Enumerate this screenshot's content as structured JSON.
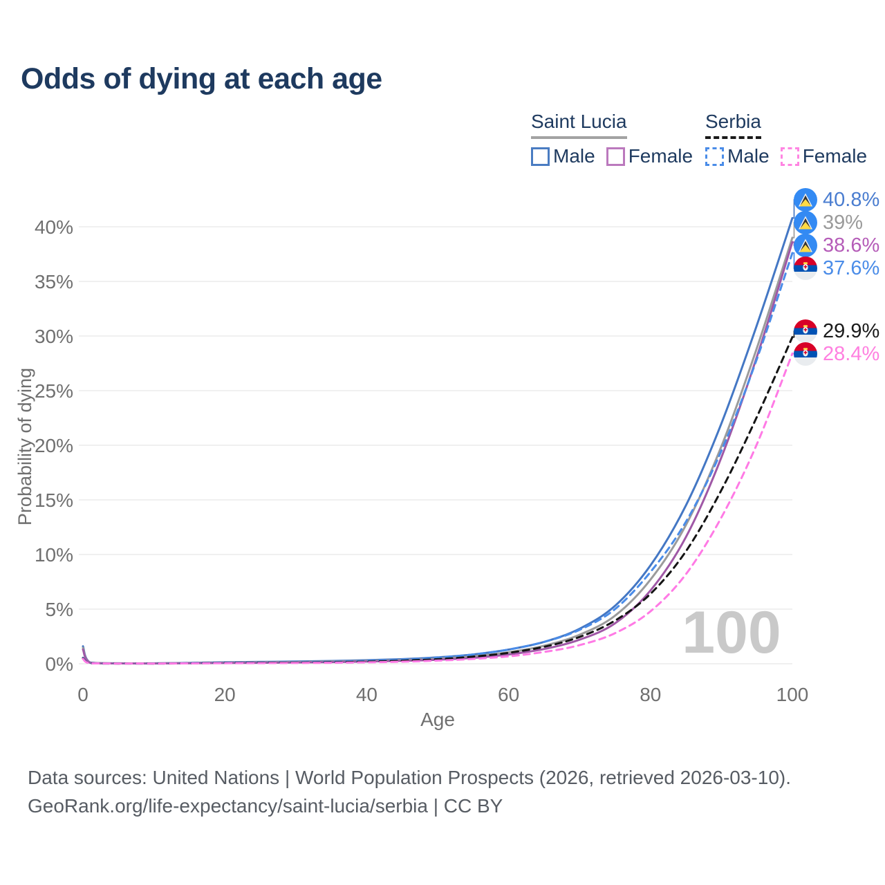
{
  "title": "Odds of dying at each age",
  "legend": {
    "groups": [
      {
        "name": "Saint Lucia",
        "style": "solid",
        "line_color": "#a3a3a3",
        "items": [
          {
            "label": "Male",
            "color": "#4a7cc2",
            "dash": false
          },
          {
            "label": "Female",
            "color": "#bb79bd",
            "dash": false
          }
        ]
      },
      {
        "name": "Serbia",
        "style": "dashed",
        "line_color": "#1a1a1a",
        "items": [
          {
            "label": "Male",
            "color": "#4a8ce8",
            "dash": true
          },
          {
            "label": "Female",
            "color": "#ff85e2",
            "dash": true
          }
        ]
      }
    ]
  },
  "chart_data": {
    "type": "line",
    "title": "Odds of dying at each age",
    "xlabel": "Age",
    "ylabel": "Probability of dying",
    "xlim": [
      0,
      100
    ],
    "ylim": [
      0,
      42
    ],
    "x_ticks": [
      0,
      20,
      40,
      60,
      80,
      100
    ],
    "y_ticks": [
      0,
      5,
      10,
      15,
      20,
      25,
      30,
      35,
      40
    ],
    "y_tick_suffix": "%",
    "grid": true,
    "legend_position": "top-right",
    "watermark": "100",
    "x": [
      0,
      1,
      5,
      10,
      15,
      20,
      25,
      30,
      35,
      40,
      45,
      50,
      55,
      60,
      65,
      70,
      75,
      80,
      85,
      90,
      95,
      100
    ],
    "series": [
      {
        "id": "saint-lucia-male",
        "name": "Saint Lucia Male",
        "country": "Saint Lucia",
        "sex": "Male",
        "color": "#4477c4",
        "label_color": "#4a7dd0",
        "dash": false,
        "flag": "saint-lucia",
        "end_value": 40.8,
        "end_label": "40.8%",
        "values": [
          1.6,
          0.12,
          0.04,
          0.04,
          0.08,
          0.13,
          0.17,
          0.2,
          0.25,
          0.32,
          0.42,
          0.58,
          0.85,
          1.3,
          2.0,
          3.2,
          5.3,
          9.0,
          14.5,
          22.0,
          31.0,
          40.8
        ]
      },
      {
        "id": "saint-lucia-both",
        "name": "Saint Lucia (both sexes)",
        "country": "Saint Lucia",
        "sex": "Both",
        "color": "#9b9b9b",
        "label_color": "#9a9a9a",
        "dash": false,
        "flag": "saint-lucia",
        "end_value": 39,
        "end_label": "39%",
        "values": [
          1.45,
          0.1,
          0.035,
          0.033,
          0.06,
          0.1,
          0.13,
          0.16,
          0.2,
          0.26,
          0.34,
          0.47,
          0.68,
          1.05,
          1.65,
          2.65,
          4.4,
          7.7,
          12.7,
          19.9,
          28.9,
          39.0
        ]
      },
      {
        "id": "saint-lucia-female",
        "name": "Saint Lucia Female",
        "country": "Saint Lucia",
        "sex": "Female",
        "color": "#9f58a6",
        "label_color": "#b55cb8",
        "dash": false,
        "flag": "saint-lucia",
        "end_value": 38.6,
        "end_label": "38.6%",
        "values": [
          1.3,
          0.09,
          0.03,
          0.028,
          0.05,
          0.07,
          0.09,
          0.12,
          0.15,
          0.2,
          0.27,
          0.37,
          0.54,
          0.85,
          1.35,
          2.2,
          3.7,
          6.7,
          11.6,
          18.9,
          28.1,
          38.6
        ]
      },
      {
        "id": "serbia-male",
        "name": "Serbia Male",
        "country": "Serbia",
        "sex": "Male",
        "color": "#4a8ce8",
        "label_color": "#4a8ce8",
        "dash": true,
        "flag": "serbia",
        "end_value": 37.6,
        "end_label": "37.6%",
        "values": [
          0.55,
          0.05,
          0.02,
          0.02,
          0.05,
          0.09,
          0.11,
          0.13,
          0.17,
          0.25,
          0.36,
          0.55,
          0.85,
          1.3,
          2.0,
          3.1,
          5.0,
          8.4,
          13.0,
          19.5,
          27.9,
          37.6
        ]
      },
      {
        "id": "serbia-both",
        "name": "Serbia (both sexes)",
        "country": "Serbia",
        "sex": "Both",
        "color": "#141414",
        "label_color": "#1a1a1a",
        "dash": true,
        "flag": "serbia",
        "end_value": 29.9,
        "end_label": "29.9%",
        "values": [
          0.5,
          0.045,
          0.018,
          0.018,
          0.04,
          0.07,
          0.09,
          0.1,
          0.13,
          0.19,
          0.28,
          0.42,
          0.65,
          1.0,
          1.55,
          2.45,
          3.95,
          6.4,
          10.3,
          15.9,
          22.6,
          29.9
        ]
      },
      {
        "id": "serbia-female",
        "name": "Serbia Female",
        "country": "Serbia",
        "sex": "Female",
        "color": "#ff7ae5",
        "label_color": "#ff80e0",
        "dash": true,
        "flag": "serbia",
        "end_value": 28.4,
        "end_label": "28.4%",
        "values": [
          0.45,
          0.04,
          0.015,
          0.015,
          0.03,
          0.05,
          0.06,
          0.07,
          0.09,
          0.13,
          0.19,
          0.29,
          0.44,
          0.68,
          1.08,
          1.7,
          2.8,
          4.8,
          8.2,
          13.4,
          20.1,
          28.4
        ]
      }
    ]
  },
  "footer": {
    "line1": "Data sources: United Nations | World Population Prospects (2026, retrieved 2026-03-10).",
    "line2": "GeoRank.org/life-expectancy/saint-lucia/serbia | CC BY"
  }
}
